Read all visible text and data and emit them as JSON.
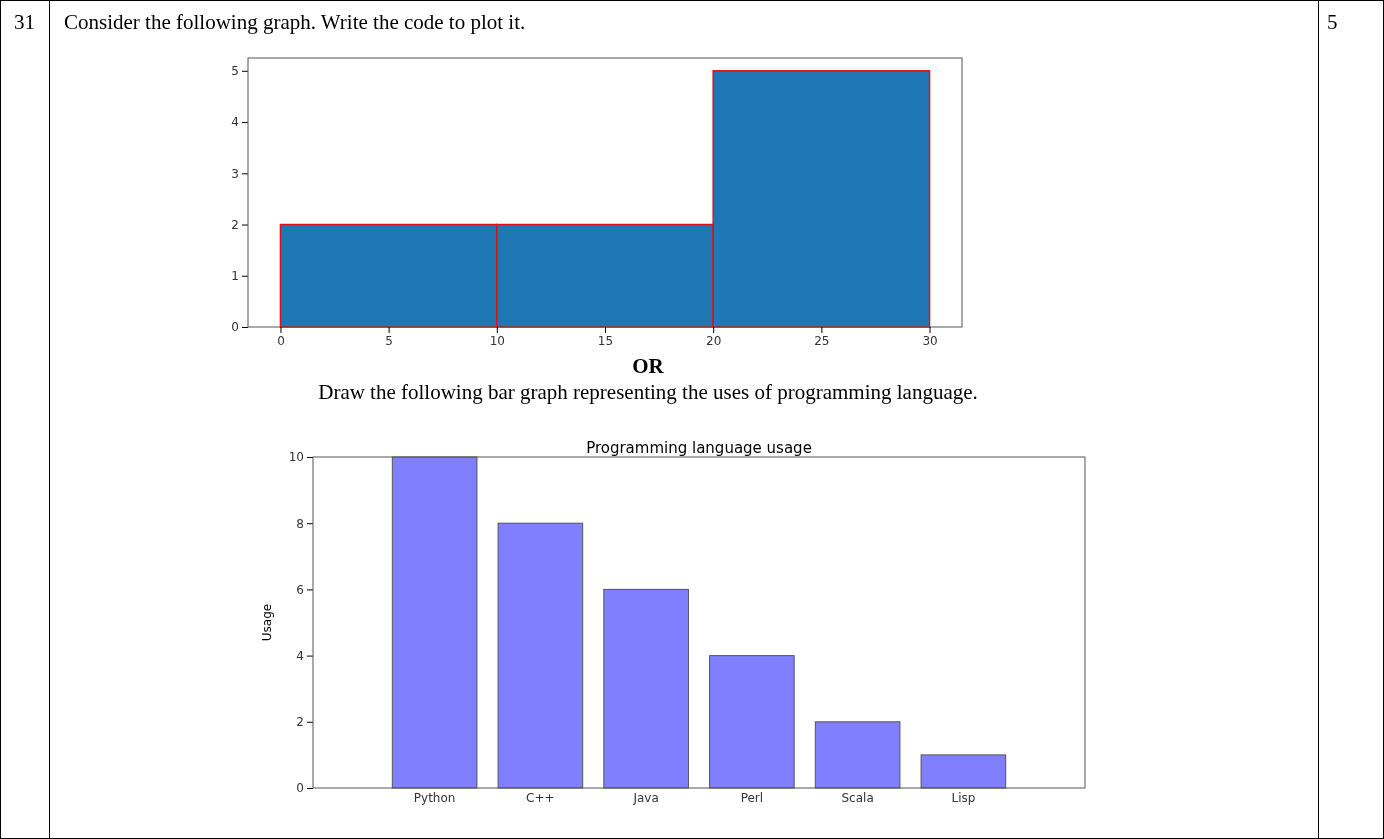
{
  "chart_data": [
    {
      "type": "histogram",
      "bins": [
        0,
        10,
        20,
        30
      ],
      "values": [
        2,
        2,
        5
      ],
      "color": "#1f77b4",
      "xlim": [
        -1.5,
        31.5
      ],
      "xticks": [
        0,
        5,
        10,
        15,
        20,
        25,
        30
      ],
      "ylim": [
        0,
        5.25
      ],
      "yticks": [
        0,
        1,
        2,
        3,
        4,
        5
      ],
      "grid": false,
      "annotations": [
        "31",
        "Consider the following graph. Write the code to plot it.",
        "5"
      ]
    },
    {
      "type": "bar",
      "title": "Programming language usage",
      "ylabel": "Usage",
      "categories": [
        "Python",
        "C++",
        "Java",
        "Perl",
        "Scala",
        "Lisp"
      ],
      "values": [
        10,
        8,
        6,
        4,
        2,
        1
      ],
      "color": "#7f7fff",
      "ylim": [
        0,
        10
      ],
      "yticks": [
        0,
        2,
        4,
        6,
        8,
        10
      ],
      "grid": false,
      "annotations": [
        "OR",
        "Draw the following bar graph representing the uses of programming language."
      ]
    }
  ]
}
